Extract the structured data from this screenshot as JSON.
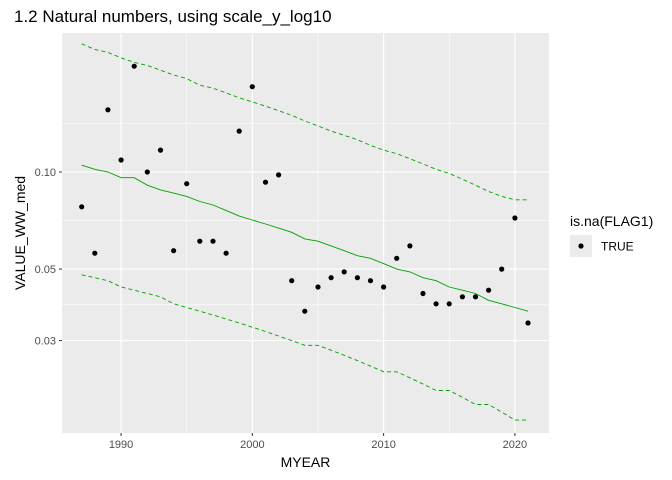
{
  "chart_data": {
    "type": "scatter",
    "title": "1.2 Natural numbers, using scale_y_log10",
    "xlabel": "MYEAR",
    "ylabel": "VALUE_WW_med",
    "x_scale": "linear",
    "y_scale": "log10",
    "xlim": [
      1985.5,
      2022.6
    ],
    "ylim": [
      0.0155,
      0.27
    ],
    "x_ticks": [
      1990,
      2000,
      2010,
      2020
    ],
    "y_ticks": [
      0.03,
      0.05,
      0.1
    ],
    "y_tick_labels": [
      "0.03",
      "0.05",
      "0.10"
    ],
    "grid": true,
    "background": "#ebebeb",
    "legend": {
      "title": "is.na(FLAG1)",
      "placement": "right",
      "entries": [
        {
          "label": "TRUE",
          "marker": "point",
          "color": "#000000"
        }
      ]
    },
    "points": {
      "name": "TRUE",
      "color": "#000000",
      "x": [
        1987,
        1988,
        1989,
        1990,
        1991,
        1992,
        1993,
        1994,
        1995,
        1996,
        1997,
        1998,
        1999,
        2000,
        2001,
        2002,
        2003,
        2004,
        2005,
        2006,
        2007,
        2008,
        2009,
        2010,
        2011,
        2012,
        2013,
        2014,
        2015,
        2016,
        2017,
        2018,
        2019,
        2020,
        2021
      ],
      "y": [
        0.078,
        0.056,
        0.156,
        0.109,
        0.213,
        0.1,
        0.117,
        0.057,
        0.092,
        0.061,
        0.061,
        0.056,
        0.134,
        0.184,
        0.093,
        0.098,
        0.046,
        0.037,
        0.044,
        0.047,
        0.049,
        0.047,
        0.046,
        0.044,
        0.054,
        0.059,
        0.042,
        0.039,
        0.039,
        0.041,
        0.041,
        0.043,
        0.05,
        0.072,
        0.034
      ]
    },
    "lines": [
      {
        "role": "fit",
        "color": "#00a000",
        "style": "solid",
        "x": [
          1987,
          1988,
          1989,
          1990,
          1991,
          1992,
          1993,
          1994,
          1995,
          1996,
          1997,
          1998,
          1999,
          2000,
          2001,
          2002,
          2003,
          2004,
          2005,
          2006,
          2007,
          2008,
          2009,
          2010,
          2011,
          2012,
          2013,
          2014,
          2015,
          2016,
          2017,
          2018,
          2019,
          2020,
          2021
        ],
        "y": [
          0.105,
          0.102,
          0.1,
          0.096,
          0.096,
          0.091,
          0.088,
          0.086,
          0.084,
          0.081,
          0.079,
          0.076,
          0.073,
          0.071,
          0.069,
          0.067,
          0.065,
          0.062,
          0.061,
          0.059,
          0.057,
          0.055,
          0.054,
          0.052,
          0.05,
          0.049,
          0.047,
          0.046,
          0.044,
          0.043,
          0.042,
          0.04,
          0.039,
          0.038,
          0.037
        ]
      },
      {
        "role": "upper",
        "color": "#00a000",
        "style": "dashed",
        "x": [
          1987,
          1988,
          1989,
          1990,
          1991,
          1992,
          1993,
          1994,
          1995,
          1996,
          1997,
          1998,
          1999,
          2000,
          2001,
          2002,
          2003,
          2004,
          2005,
          2006,
          2007,
          2008,
          2009,
          2010,
          2011,
          2012,
          2013,
          2014,
          2015,
          2016,
          2017,
          2018,
          2019,
          2020,
          2021
        ],
        "y": [
          0.25,
          0.24,
          0.235,
          0.226,
          0.219,
          0.214,
          0.207,
          0.2,
          0.195,
          0.186,
          0.182,
          0.176,
          0.17,
          0.165,
          0.16,
          0.155,
          0.15,
          0.144,
          0.139,
          0.134,
          0.13,
          0.126,
          0.121,
          0.117,
          0.114,
          0.11,
          0.106,
          0.102,
          0.099,
          0.095,
          0.091,
          0.087,
          0.084,
          0.082,
          0.082
        ]
      },
      {
        "role": "lower",
        "color": "#00a000",
        "style": "dashed",
        "x": [
          1987,
          1988,
          1989,
          1990,
          1991,
          1992,
          1993,
          1994,
          1995,
          1996,
          1997,
          1998,
          1999,
          2000,
          2001,
          2002,
          2003,
          2004,
          2005,
          2006,
          2007,
          2008,
          2009,
          2010,
          2011,
          2012,
          2013,
          2014,
          2015,
          2016,
          2017,
          2018,
          2019,
          2020,
          2021
        ],
        "y": [
          0.048,
          0.047,
          0.046,
          0.044,
          0.043,
          0.042,
          0.041,
          0.039,
          0.038,
          0.037,
          0.036,
          0.035,
          0.034,
          0.033,
          0.032,
          0.031,
          0.03,
          0.029,
          0.029,
          0.028,
          0.027,
          0.026,
          0.025,
          0.024,
          0.024,
          0.023,
          0.022,
          0.021,
          0.021,
          0.02,
          0.019,
          0.019,
          0.018,
          0.017,
          0.017
        ]
      }
    ]
  }
}
